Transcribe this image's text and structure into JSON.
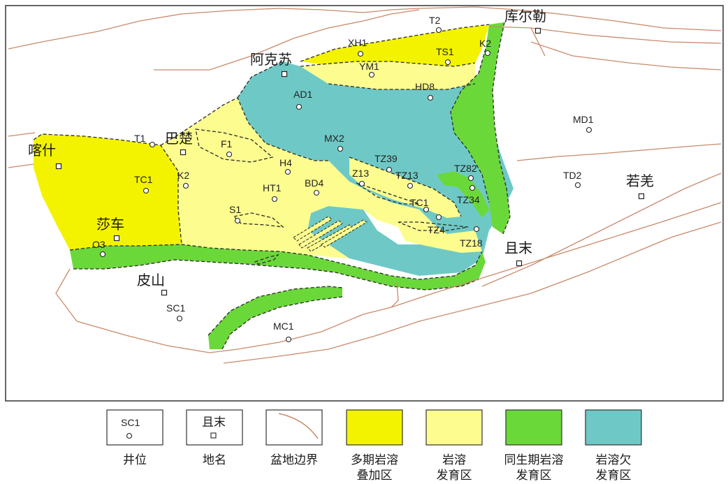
{
  "colors": {
    "multi_karst": "#f3f300",
    "karst": "#fdfd8f",
    "syn_karst": "#6bd83a",
    "weak_karst": "#6ec9c6",
    "boundary": "#c98a6a",
    "dash": "#2a2a2a"
  },
  "places": [
    {
      "name": "库尔勒"
    },
    {
      "name": "阿克苏"
    },
    {
      "name": "巴楚"
    },
    {
      "name": "喀什"
    },
    {
      "name": "莎车"
    },
    {
      "name": "皮山"
    },
    {
      "name": "且末"
    },
    {
      "name": "若羌"
    }
  ],
  "wells": [
    {
      "name": "T2"
    },
    {
      "name": "XH1"
    },
    {
      "name": "TS1"
    },
    {
      "name": "K2"
    },
    {
      "name": "YM1"
    },
    {
      "name": "HD8"
    },
    {
      "name": "AD1"
    },
    {
      "name": "MD1"
    },
    {
      "name": "T1"
    },
    {
      "name": "F1"
    },
    {
      "name": "MX2"
    },
    {
      "name": "TZ39"
    },
    {
      "name": "H4"
    },
    {
      "name": "Z13"
    },
    {
      "name": "TZ13"
    },
    {
      "name": "TZ82"
    },
    {
      "name": "TC1"
    },
    {
      "name": "K2"
    },
    {
      "name": "HT1"
    },
    {
      "name": "BD4"
    },
    {
      "name": "TD2"
    },
    {
      "name": "TZ34"
    },
    {
      "name": "TC1"
    },
    {
      "name": "S1"
    },
    {
      "name": "TZ4"
    },
    {
      "name": "TZ18"
    },
    {
      "name": "O3"
    },
    {
      "name": "SC1"
    },
    {
      "name": "MC1"
    }
  ],
  "legend": [
    {
      "key": "well",
      "sample": "SC1",
      "label_lines": [
        "井位"
      ]
    },
    {
      "key": "place",
      "sample": "且末",
      "label_lines": [
        "地名"
      ]
    },
    {
      "key": "boundary",
      "label_lines": [
        "盆地边界"
      ]
    },
    {
      "key": "multi_karst",
      "label_lines": [
        "多期岩溶",
        "叠加区"
      ]
    },
    {
      "key": "karst",
      "label_lines": [
        "岩溶",
        "发育区"
      ]
    },
    {
      "key": "syn_karst",
      "label_lines": [
        "同生期岩溶",
        "发育区"
      ]
    },
    {
      "key": "weak_karst",
      "label_lines": [
        "岩溶欠",
        "发育区"
      ]
    }
  ]
}
